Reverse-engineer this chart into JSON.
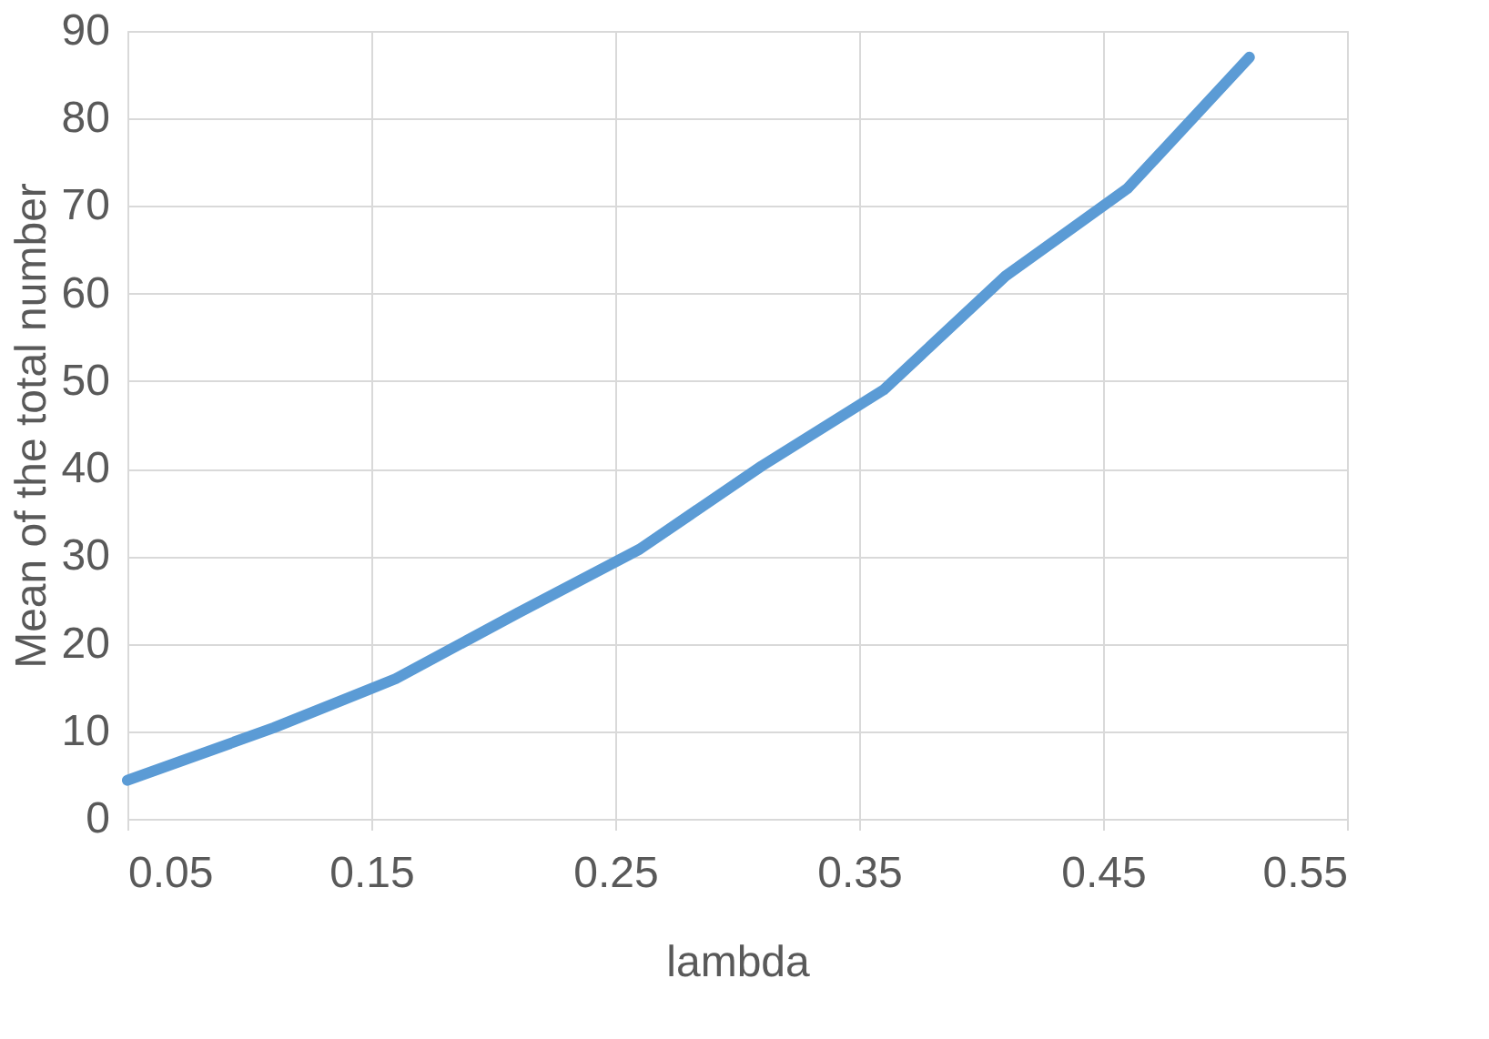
{
  "chart_data": {
    "type": "line",
    "xlabel": "lambda",
    "ylabel": "Mean of the total number",
    "x": [
      0.05,
      0.11,
      0.16,
      0.21,
      0.26,
      0.31,
      0.36,
      0.41,
      0.46,
      0.51
    ],
    "series": [
      {
        "color": "#5b9bd5",
        "values": [
          4.4,
          10.4,
          16,
          23.5,
          30.8,
          40.3,
          49,
          62,
          72,
          87
        ]
      }
    ],
    "xlim": [
      0.05,
      0.55
    ],
    "xticks": [
      0.05,
      0.15,
      0.25,
      0.35,
      0.45,
      0.55
    ],
    "ylim": [
      0,
      90
    ],
    "yticks": [
      0,
      10,
      20,
      30,
      40,
      50,
      60,
      70,
      80,
      90
    ],
    "grid": true,
    "marker": "none",
    "line_style": "solid"
  }
}
